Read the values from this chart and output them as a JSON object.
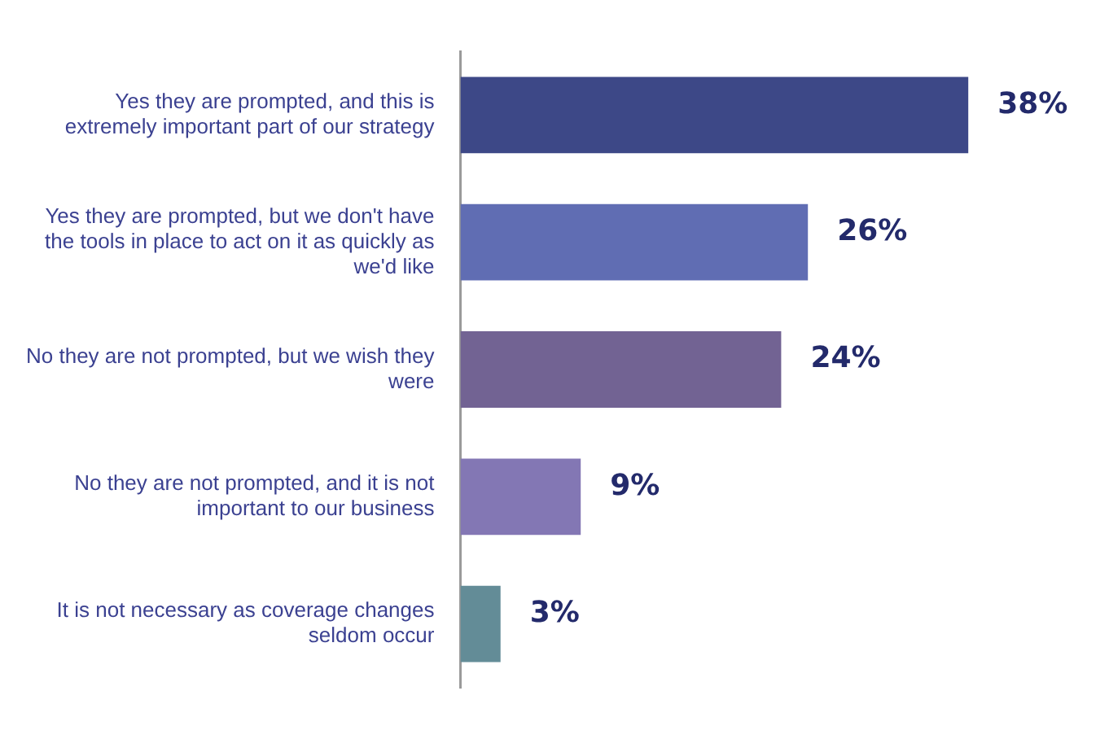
{
  "chart_data": {
    "type": "bar",
    "orientation": "horizontal",
    "categories": [
      "Yes they are prompted, and this is extremely important part of our strategy",
      "Yes they are prompted, but we don't have the tools in place to act on it as quickly as we'd like",
      "No they are not prompted, but we wish they were",
      "No they are not prompted, and it is not important to our business",
      "It is not necessary as coverage changes seldom occur"
    ],
    "values": [
      38,
      26,
      24,
      9,
      3
    ],
    "colors": [
      "#3d4887",
      "#606db3",
      "#726393",
      "#8377b4",
      "#638c97"
    ],
    "value_labels": [
      "38%",
      "26%",
      "24%",
      "9%",
      "3%"
    ],
    "grid": false,
    "legend": false,
    "tick_labels": "y"
  }
}
